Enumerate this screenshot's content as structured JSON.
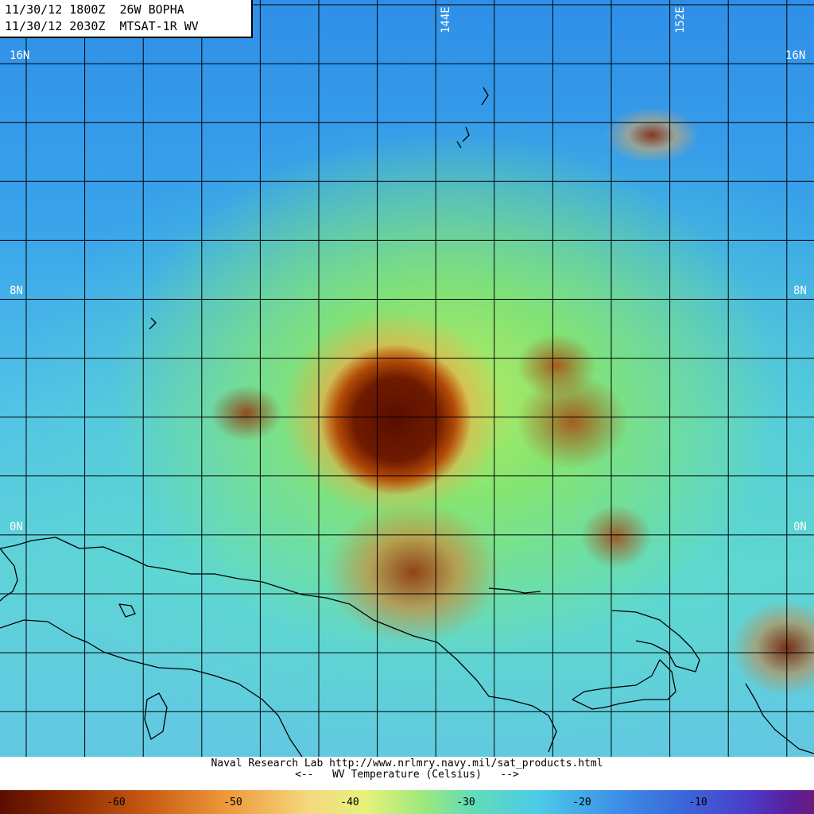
{
  "header": {
    "line1": "11/30/12 1800Z  26W BOPHA",
    "line2": "11/30/12 2030Z  MTSAT-1R WV"
  },
  "grid": {
    "lat_labels": [
      "16N",
      "16N",
      "8N",
      "8N",
      "0N",
      "0N"
    ],
    "lon_labels": [
      "144E",
      "152E"
    ]
  },
  "footer": {
    "credit": "Naval Research Lab http://www.nrlmry.navy.mil/sat_products.html",
    "scale_title": "<--   WV Temperature (Celsius)   -->"
  },
  "colorbar": {
    "ticks": [
      "-60",
      "-50",
      "-40",
      "-30",
      "-20",
      "-10"
    ]
  },
  "colors": {
    "coldest": "#5a0e00",
    "warmest": "#6a1a80",
    "gridline": "#000000"
  }
}
